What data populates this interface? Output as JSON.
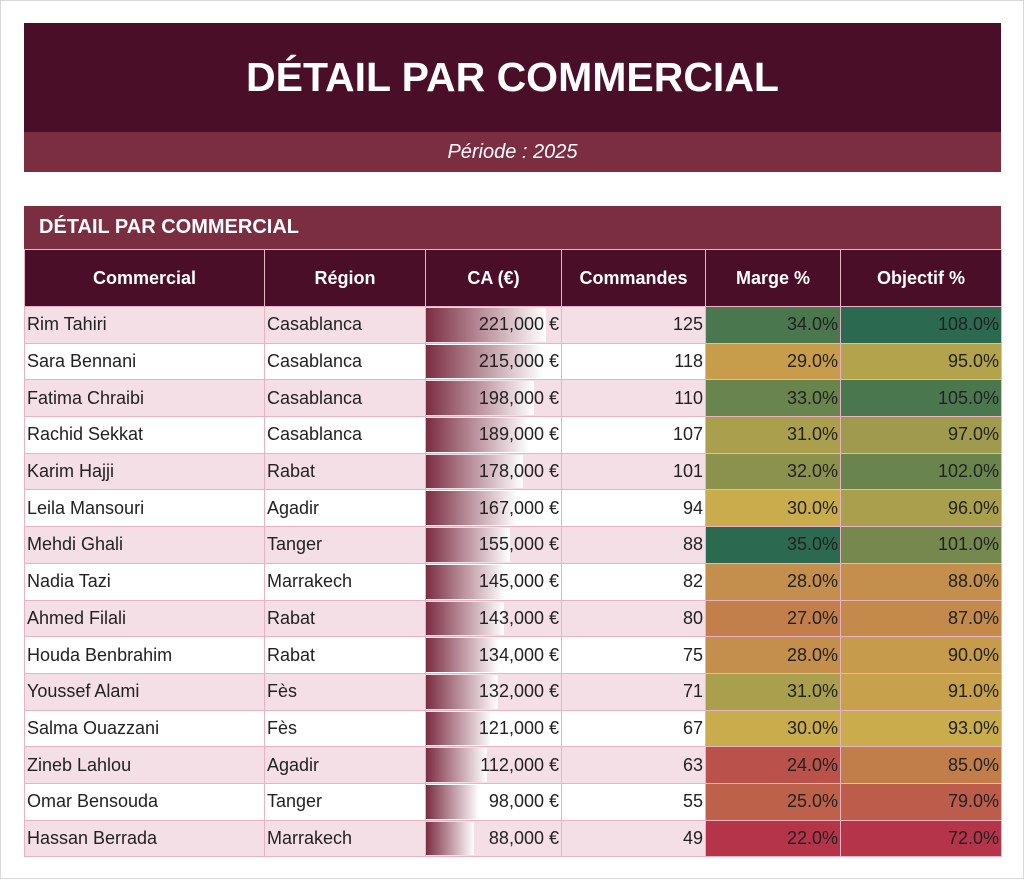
{
  "header": {
    "title": "DÉTAIL PAR COMMERCIAL",
    "subtitle": "Période : 2025"
  },
  "table": {
    "title": "DÉTAIL PAR COMMERCIAL",
    "columns": [
      "Commercial",
      "Région",
      "CA (€)",
      "Commandes",
      "Marge %",
      "Objectif %"
    ],
    "rows": [
      [
        "Rim Tahiri",
        "Casablanca",
        "221,000 €",
        "125",
        "34.0%",
        "108.0%"
      ],
      [
        "Sara Bennani",
        "Casablanca",
        "215,000 €",
        "118",
        "29.0%",
        "95.0%"
      ],
      [
        "Fatima Chraibi",
        "Casablanca",
        "198,000 €",
        "110",
        "33.0%",
        "105.0%"
      ],
      [
        "Rachid Sekkat",
        "Casablanca",
        "189,000 €",
        "107",
        "31.0%",
        "97.0%"
      ],
      [
        "Karim Hajji",
        "Rabat",
        "178,000 €",
        "101",
        "32.0%",
        "102.0%"
      ],
      [
        "Leila Mansouri",
        "Agadir",
        "167,000 €",
        "94",
        "30.0%",
        "96.0%"
      ],
      [
        "Mehdi Ghali",
        "Tanger",
        "155,000 €",
        "88",
        "35.0%",
        "101.0%"
      ],
      [
        "Nadia Tazi",
        "Marrakech",
        "145,000 €",
        "82",
        "28.0%",
        "88.0%"
      ],
      [
        "Ahmed Filali",
        "Rabat",
        "143,000 €",
        "80",
        "27.0%",
        "87.0%"
      ],
      [
        "Houda Benbrahim",
        "Rabat",
        "134,000 €",
        "75",
        "28.0%",
        "90.0%"
      ],
      [
        "Youssef Alami",
        "Fès",
        "132,000 €",
        "71",
        "31.0%",
        "91.0%"
      ],
      [
        "Salma Ouazzani",
        "Fès",
        "121,000 €",
        "67",
        "30.0%",
        "93.0%"
      ],
      [
        "Zineb Lahlou",
        "Agadir",
        "112,000 €",
        "63",
        "24.0%",
        "85.0%"
      ],
      [
        "Omar Bensouda",
        "Tanger",
        "98,000 €",
        "55",
        "25.0%",
        "79.0%"
      ],
      [
        "Hassan Berrada",
        "Marrakech",
        "88,000 €",
        "49",
        "22.0%",
        "72.0%"
      ]
    ]
  }
}
